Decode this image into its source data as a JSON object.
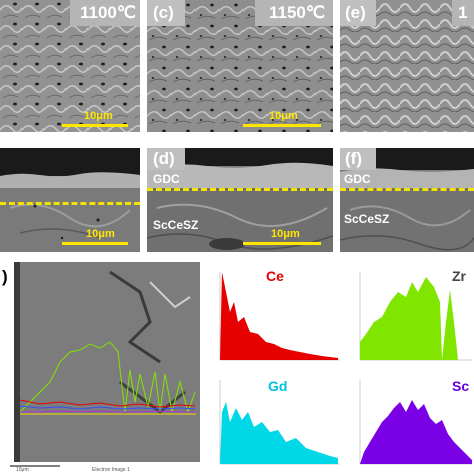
{
  "panels": {
    "a": {
      "label": "",
      "temperature": "1100℃",
      "scale": "10μm"
    },
    "c": {
      "label": "(c)",
      "temperature": "1150℃",
      "scale": "10μm"
    },
    "e": {
      "label": "(e)",
      "temperature": "1"
    },
    "b": {
      "scale": "10μm",
      "tiny_text": ""
    },
    "d": {
      "label": "(d)",
      "top_layer": "GDC",
      "bottom_layer": "ScCeSZ",
      "scale": "10μm"
    },
    "f": {
      "label": "(f)",
      "top_layer": "GDC",
      "bottom_layer": "ScCeSZ"
    },
    "g": {
      "label": ")",
      "scale_text": "10μm",
      "caption": "Electron Image 1"
    }
  },
  "eds": {
    "ce": {
      "label": "Ce",
      "color": "#e60000"
    },
    "zr": {
      "label": "Zr",
      "color": "#80e600"
    },
    "gd": {
      "label": "Gd",
      "color": "#00d8e8"
    },
    "sc": {
      "label": "Sc",
      "color": "#7a00e6"
    }
  }
}
